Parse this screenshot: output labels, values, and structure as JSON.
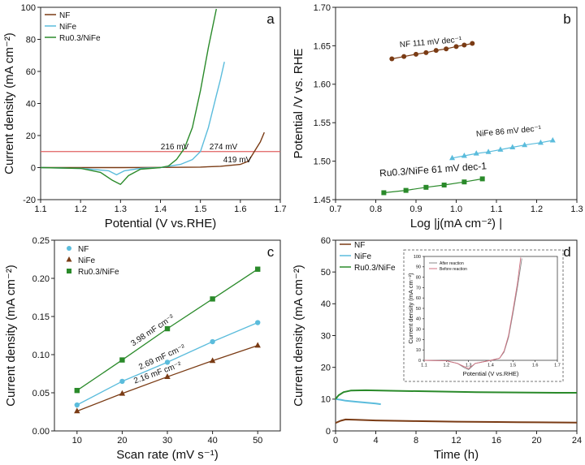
{
  "figure": {
    "colors": {
      "nf": "#7a3b14",
      "nife": "#5bbcdc",
      "ru": "#2a8a2a",
      "ref": "#e06060",
      "inset_after": "#888888",
      "inset_before": "#d07080"
    }
  },
  "chart_data": [
    {
      "panel": "a",
      "type": "line",
      "xlabel": "Potential (V vs.RHE)",
      "ylabel": "Current density (mA cm⁻²)",
      "xlim": [
        1.1,
        1.7
      ],
      "ylim": [
        -20,
        100
      ],
      "xticks": [
        "1.1",
        "1.2",
        "1.3",
        "1.4",
        "1.5",
        "1.6",
        "1.7"
      ],
      "yticks": [
        "-20",
        "0",
        "20",
        "40",
        "60",
        "80",
        "100"
      ],
      "legend": [
        "NF",
        "NiFe",
        "Ru0.3/NiFe"
      ],
      "reference_line_y": 10,
      "annotations": [
        "216 mV",
        "274 mV",
        "419 mV"
      ],
      "series": [
        {
          "name": "NF",
          "color_key": "nf",
          "x": [
            1.1,
            1.2,
            1.3,
            1.4,
            1.5,
            1.55,
            1.6,
            1.62,
            1.63,
            1.64,
            1.65,
            1.66
          ],
          "y": [
            0,
            0,
            0,
            0.1,
            0.3,
            0.8,
            2,
            4,
            8,
            12,
            16,
            22
          ]
        },
        {
          "name": "NiFe",
          "color_key": "nife",
          "x": [
            1.1,
            1.2,
            1.27,
            1.29,
            1.31,
            1.35,
            1.4,
            1.45,
            1.48,
            1.5,
            1.52,
            1.54,
            1.55,
            1.56
          ],
          "y": [
            0,
            -0.5,
            -2,
            -4.5,
            -2,
            -0.5,
            0,
            2,
            5,
            10,
            25,
            45,
            55,
            66
          ]
        },
        {
          "name": "Ru0.3/NiFe",
          "color_key": "ru",
          "x": [
            1.1,
            1.2,
            1.25,
            1.28,
            1.3,
            1.32,
            1.35,
            1.4,
            1.42,
            1.44,
            1.46,
            1.48,
            1.5,
            1.52,
            1.54
          ],
          "y": [
            0,
            -0.5,
            -3,
            -8,
            -10.5,
            -5,
            -1,
            0,
            1,
            5,
            12,
            25,
            48,
            75,
            99
          ]
        }
      ]
    },
    {
      "panel": "b",
      "type": "scatter",
      "xlabel": "Log |j(mA cm⁻²) |",
      "ylabel": "Potential /V vs. RHE",
      "xlim": [
        0.7,
        1.3
      ],
      "ylim": [
        1.45,
        1.7
      ],
      "xticks": [
        "0.7",
        "0.8",
        "0.9",
        "1.0",
        "1.1",
        "1.2",
        "1.3"
      ],
      "yticks": [
        "1.45",
        "1.50",
        "1.55",
        "1.60",
        "1.65",
        "1.70"
      ],
      "labels": {
        "nf": "NF 111 mV dec⁻¹",
        "nife": "NiFe 86 mV dec⁻¹",
        "ru": "Ru0.3/NiFe 61 mV dec-1"
      },
      "series": [
        {
          "name": "NF",
          "color_key": "nf",
          "marker": "circle",
          "x": [
            0.84,
            0.87,
            0.9,
            0.925,
            0.95,
            0.975,
            1.0,
            1.02,
            1.04
          ],
          "y": [
            1.633,
            1.636,
            1.639,
            1.641,
            1.644,
            1.646,
            1.649,
            1.651,
            1.653
          ]
        },
        {
          "name": "NiFe",
          "color_key": "nife",
          "marker": "triangle",
          "x": [
            0.99,
            1.02,
            1.05,
            1.08,
            1.11,
            1.14,
            1.17,
            1.21,
            1.24
          ],
          "y": [
            1.504,
            1.507,
            1.51,
            1.512,
            1.515,
            1.518,
            1.521,
            1.524,
            1.527
          ]
        },
        {
          "name": "Ru0.3/NiFe",
          "color_key": "ru",
          "marker": "square",
          "x": [
            0.82,
            0.875,
            0.925,
            0.97,
            1.02,
            1.065
          ],
          "y": [
            1.459,
            1.462,
            1.466,
            1.469,
            1.473,
            1.477
          ]
        }
      ]
    },
    {
      "panel": "c",
      "type": "scatter",
      "xlabel": "Scan rate (mV s⁻¹)",
      "ylabel": "Current density (mA cm⁻²)",
      "xlim": [
        5,
        55
      ],
      "ylim": [
        0,
        0.25
      ],
      "xticks": [
        "10",
        "20",
        "30",
        "40",
        "50"
      ],
      "yticks": [
        "0.00",
        "0.05",
        "0.10",
        "0.15",
        "0.20",
        "0.25"
      ],
      "legend": [
        "NF",
        "NiFe",
        "Ru0.3/NiFe"
      ],
      "labels": {
        "ru": "3.98 mF cm⁻²",
        "nf": "2.69 mF cm⁻²",
        "nife": "2.16 mF cm⁻²"
      },
      "series": [
        {
          "name": "NF",
          "color_key": "nife",
          "marker": "circle",
          "x": [
            10,
            20,
            30,
            40,
            50
          ],
          "y": [
            0.034,
            0.065,
            0.09,
            0.117,
            0.142
          ]
        },
        {
          "name": "NiFe",
          "color_key": "nf",
          "marker": "triangle",
          "x": [
            10,
            20,
            30,
            40,
            50
          ],
          "y": [
            0.026,
            0.049,
            0.071,
            0.092,
            0.112
          ]
        },
        {
          "name": "Ru0.3/NiFe",
          "color_key": "ru",
          "marker": "square",
          "x": [
            10,
            20,
            30,
            40,
            50
          ],
          "y": [
            0.053,
            0.093,
            0.134,
            0.173,
            0.212
          ]
        }
      ]
    },
    {
      "panel": "d",
      "type": "line",
      "xlabel": "Time (h)",
      "ylabel": "Current density (mA cm⁻²)",
      "xlim": [
        0,
        24
      ],
      "ylim": [
        0,
        60
      ],
      "xticks": [
        "0",
        "4",
        "8",
        "12",
        "16",
        "20",
        "24"
      ],
      "yticks": [
        "0",
        "10",
        "20",
        "30",
        "40",
        "50",
        "60"
      ],
      "legend": [
        "NF",
        "NiFe",
        "Ru0.3/NiFe"
      ],
      "series": [
        {
          "name": "NF",
          "color_key": "nf",
          "x": [
            0,
            0.5,
            1,
            2,
            4,
            8,
            12,
            16,
            20,
            24
          ],
          "y": [
            2.5,
            3.2,
            3.6,
            3.5,
            3.3,
            3.1,
            2.9,
            2.8,
            2.7,
            2.6
          ]
        },
        {
          "name": "NiFe",
          "color_key": "nife",
          "x": [
            0,
            0.5,
            1,
            2,
            3,
            4,
            4.5
          ],
          "y": [
            10,
            9.8,
            9.5,
            9.2,
            8.9,
            8.6,
            8.4
          ]
        },
        {
          "name": "Ru0.3/NiFe",
          "color_key": "ru",
          "x": [
            0,
            0.3,
            0.8,
            1.5,
            3,
            6,
            10,
            14,
            18,
            22,
            24
          ],
          "y": [
            10,
            11.2,
            12.2,
            12.7,
            12.8,
            12.6,
            12.4,
            12.2,
            12.1,
            12.0,
            12.0
          ]
        }
      ],
      "inset": {
        "xlabel": "Potential (V vs.RHE)",
        "ylabel": "Current density (mA cm⁻²)",
        "xlim": [
          1.1,
          1.7
        ],
        "ylim": [
          0,
          100
        ],
        "xticks": [
          "1.1",
          "1.2",
          "1.3",
          "1.4",
          "1.5",
          "1.6",
          "1.7"
        ],
        "yticks": [
          "0",
          "10",
          "20",
          "30",
          "40",
          "50",
          "60",
          "70",
          "80",
          "90",
          "100"
        ],
        "legend": [
          "After reaction",
          "Before reaction"
        ],
        "series": [
          {
            "name": "After reaction",
            "color_key": "inset_after",
            "x": [
              1.1,
              1.2,
              1.25,
              1.28,
              1.3,
              1.33,
              1.4,
              1.44,
              1.46,
              1.48,
              1.5,
              1.52,
              1.54
            ],
            "y": [
              0,
              -0.5,
              -3,
              -7,
              -9,
              -3,
              0,
              2,
              8,
              22,
              45,
              70,
              98
            ]
          },
          {
            "name": "Before reaction",
            "color_key": "inset_before",
            "x": [
              1.1,
              1.2,
              1.25,
              1.28,
              1.3,
              1.33,
              1.4,
              1.44,
              1.46,
              1.48,
              1.5,
              1.52,
              1.535
            ],
            "y": [
              0,
              -0.5,
              -3,
              -6,
              -8,
              -3,
              0,
              2,
              9,
              24,
              48,
              74,
              99
            ]
          }
        ]
      }
    }
  ]
}
